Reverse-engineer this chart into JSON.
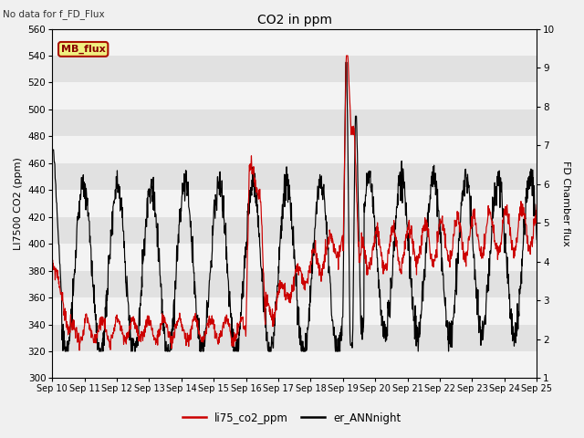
{
  "title": "CO2 in ppm",
  "ylabel_left": "LI7500 CO2 (ppm)",
  "ylabel_right": "FD Chamber flux",
  "ylim_left": [
    300,
    560
  ],
  "ylim_right": [
    1.0,
    10.0
  ],
  "yticks_left": [
    300,
    320,
    340,
    360,
    380,
    400,
    420,
    440,
    460,
    480,
    500,
    520,
    540,
    560
  ],
  "yticks_right": [
    1.0,
    2.0,
    3.0,
    4.0,
    5.0,
    6.0,
    7.0,
    8.0,
    9.0,
    10.0
  ],
  "no_data_text": "No data for f_FD_Flux",
  "mb_flux_label": "MB_flux",
  "legend_entries": [
    "li75_co2_ppm",
    "er_ANNnight"
  ],
  "line_colors": [
    "#cc0000",
    "#000000"
  ],
  "bg_color": "#e8e8e8",
  "x_tick_labels": [
    "Sep 10",
    "Sep 11",
    "Sep 12",
    "Sep 13",
    "Sep 14",
    "Sep 15",
    "Sep 16",
    "Sep 17",
    "Sep 18",
    "Sep 19",
    "Sep 20",
    "Sep 21",
    "Sep 22",
    "Sep 23",
    "Sep 24",
    "Sep 25"
  ]
}
